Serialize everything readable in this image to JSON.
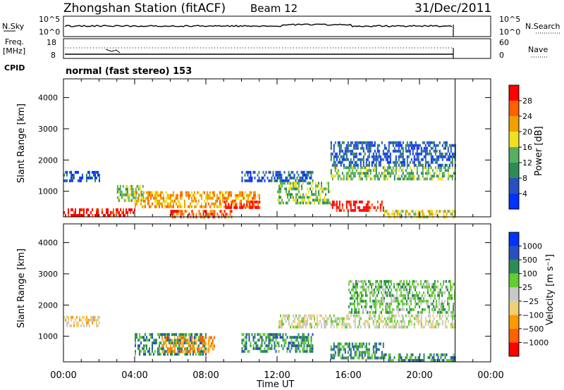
{
  "header": {
    "station": "Zhongshan Station (fitACF)",
    "beam": "Beam 12",
    "date": "31/Dec/2011"
  },
  "panels": {
    "nsky_label": "N.Sky",
    "nsky_ticks": [
      "10^5",
      "10^0"
    ],
    "nsearch_label": "N.Search",
    "freq_label_1": "Freq.",
    "freq_label_2": "[MHz]",
    "freq_ticks": [
      "18",
      "8"
    ],
    "nave_ticks": [
      "60",
      "0"
    ],
    "nave_label": "Nave",
    "cpid_label": "CPID",
    "cpid_value": "normal (fast stereo) 153"
  },
  "colors": {
    "power": [
      "#0033ff",
      "#2850c0",
      "#2e8b57",
      "#55b060",
      "#f0e020",
      "#f0a000",
      "#ff6000",
      "#ff0000"
    ],
    "velocity": [
      "#ff0000",
      "#ff6000",
      "#ff9900",
      "#f0d070",
      "#c8c8c8",
      "#66cc33",
      "#2e8b57",
      "#2850c0",
      "#0033ff"
    ]
  },
  "chart_data": [
    {
      "type": "heatmap",
      "title": "Power",
      "xlabel": "Time UT",
      "ylabel": "Slant Range [km]",
      "xticks": [
        "00:00",
        "04:00",
        "08:00",
        "12:00",
        "16:00",
        "20:00",
        "00:00"
      ],
      "yticks": [
        "1000",
        "2000",
        "3000",
        "4000"
      ],
      "xlim_hours": [
        0,
        24
      ],
      "ylim_km": [
        180,
        4600
      ],
      "data_end_hour": 22,
      "colorbar_label": "Power [dB]",
      "colorbar_ticks": [
        "4",
        "8",
        "12",
        "16",
        "20",
        "24",
        "28"
      ],
      "regions": [
        {
          "t": [
            0.0,
            4.0
          ],
          "r": [
            180,
            450
          ],
          "level": 7
        },
        {
          "t": [
            0.0,
            2.0
          ],
          "r": [
            1300,
            1650
          ],
          "level": 1
        },
        {
          "t": [
            3.0,
            4.5
          ],
          "r": [
            700,
            1200
          ],
          "level": 3
        },
        {
          "t": [
            4.0,
            11.0
          ],
          "r": [
            500,
            1000
          ],
          "level": 5
        },
        {
          "t": [
            9.0,
            11.0
          ],
          "r": [
            500,
            700
          ],
          "level": 7
        },
        {
          "t": [
            6.0,
            9.5
          ],
          "r": [
            180,
            400
          ],
          "level": 6
        },
        {
          "t": [
            10.0,
            14.0
          ],
          "r": [
            1300,
            1650
          ],
          "level": 1
        },
        {
          "t": [
            12.0,
            15.0
          ],
          "r": [
            600,
            1300
          ],
          "level": 3
        },
        {
          "t": [
            15.0,
            18.0
          ],
          "r": [
            350,
            700
          ],
          "level": 7
        },
        {
          "t": [
            15.0,
            22.0
          ],
          "r": [
            1400,
            1800
          ],
          "level": 3
        },
        {
          "t": [
            15.0,
            22.0
          ],
          "r": [
            1800,
            2600
          ],
          "level": 1
        },
        {
          "t": [
            18.0,
            22.0
          ],
          "r": [
            180,
            400
          ],
          "level": 4
        }
      ]
    },
    {
      "type": "heatmap",
      "title": "Velocity",
      "xlabel": "Time UT",
      "ylabel": "Slant Range [km]",
      "xticks": [
        "00:00",
        "04:00",
        "08:00",
        "12:00",
        "16:00",
        "20:00",
        "00:00"
      ],
      "yticks": [
        "1000",
        "2000",
        "3000",
        "4000"
      ],
      "xlim_hours": [
        0,
        24
      ],
      "ylim_km": [
        180,
        4600
      ],
      "data_end_hour": 22,
      "colorbar_label": "Velocity [m s⁻¹]",
      "colorbar_ticks": [
        "1000",
        "500",
        "100",
        "25",
        "−25",
        "−100",
        "−500",
        "−1000"
      ],
      "regions": [
        {
          "t": [
            0.0,
            2.0
          ],
          "r": [
            1300,
            1650
          ],
          "level": 3
        },
        {
          "t": [
            4.0,
            8.0
          ],
          "r": [
            400,
            1100
          ],
          "level": 6
        },
        {
          "t": [
            5.5,
            8.5
          ],
          "r": [
            500,
            1000
          ],
          "level": 2
        },
        {
          "t": [
            10.0,
            14.0
          ],
          "r": [
            500,
            1100
          ],
          "level": 6
        },
        {
          "t": [
            12.0,
            15.0
          ],
          "r": [
            1300,
            1700
          ],
          "level": 4
        },
        {
          "t": [
            15.0,
            18.0
          ],
          "r": [
            300,
            800
          ],
          "level": 6
        },
        {
          "t": [
            15.0,
            22.0
          ],
          "r": [
            1300,
            1700
          ],
          "level": 4
        },
        {
          "t": [
            16.0,
            22.0
          ],
          "r": [
            1800,
            2800
          ],
          "level": 5
        },
        {
          "t": [
            18.0,
            22.0
          ],
          "r": [
            180,
            450
          ],
          "level": 6
        }
      ]
    }
  ]
}
